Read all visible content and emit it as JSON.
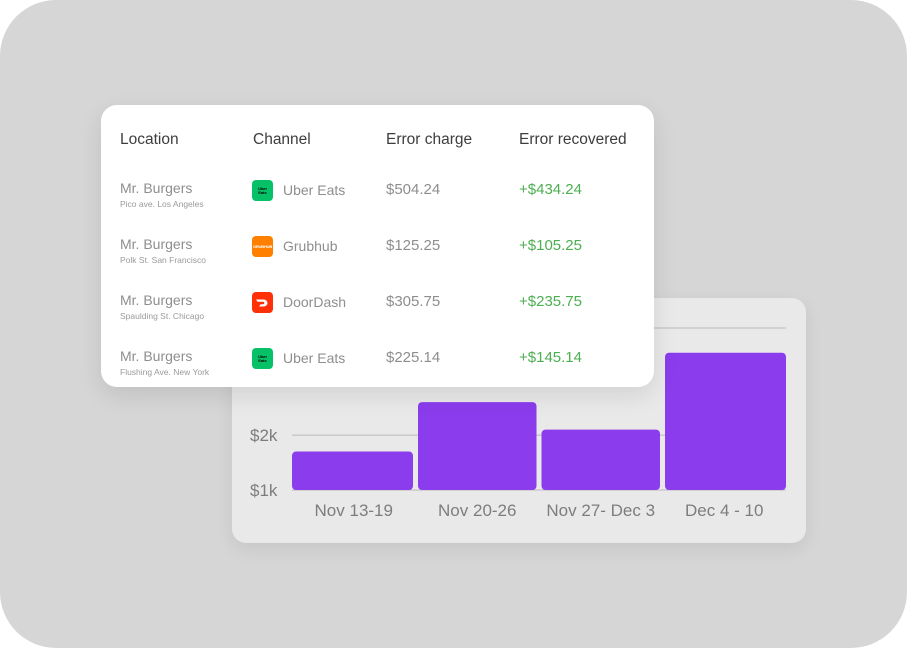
{
  "table": {
    "headers": {
      "location": "Location",
      "channel": "Channel",
      "error_charge": "Error charge",
      "error_recovered": "Error recovered"
    },
    "rows": [
      {
        "location": "Mr. Burgers",
        "address": "Pico ave. Los Angeles",
        "channel": "Uber Eats",
        "channel_icon": "uber-eats-icon",
        "charge": "$504.24",
        "recovered": "+$434.24"
      },
      {
        "location": "Mr. Burgers",
        "address": "Polk St. San Francisco",
        "channel": "Grubhub",
        "channel_icon": "grubhub-icon",
        "charge": "$125.25",
        "recovered": "+$105.25"
      },
      {
        "location": "Mr. Burgers",
        "address": "Spaulding St. Chicago",
        "channel": "DoorDash",
        "channel_icon": "doordash-icon",
        "charge": "$305.75",
        "recovered": "+$235.75"
      },
      {
        "location": "Mr. Burgers",
        "address": "Flushing Ave. New York",
        "channel": "Uber Eats",
        "channel_icon": "uber-eats-icon",
        "charge": "$225.14",
        "recovered": "+$145.14"
      }
    ]
  },
  "logos": {
    "uber_eats": "Uber Eats",
    "grubhub": "GRUBHUB"
  },
  "colors": {
    "recovered_green": "#4caf50",
    "bar_purple": "#8b3cec",
    "uber_eats_green": "#06c167",
    "grubhub_orange": "#ff8000",
    "doordash_red": "#ff3008"
  },
  "chart_data": {
    "type": "bar",
    "categories": [
      "Nov 13-19",
      "Nov 20-26",
      "Nov 27- Dec 3",
      "Dec 4 - 10"
    ],
    "values": [
      1700,
      2600,
      2100,
      3500
    ],
    "ytick_labels": [
      "$1k",
      "$2k"
    ],
    "yticks": [
      1000,
      2000
    ],
    "ylim": [
      1000,
      3950
    ],
    "grid": true,
    "title": "",
    "xlabel": "",
    "ylabel": ""
  }
}
